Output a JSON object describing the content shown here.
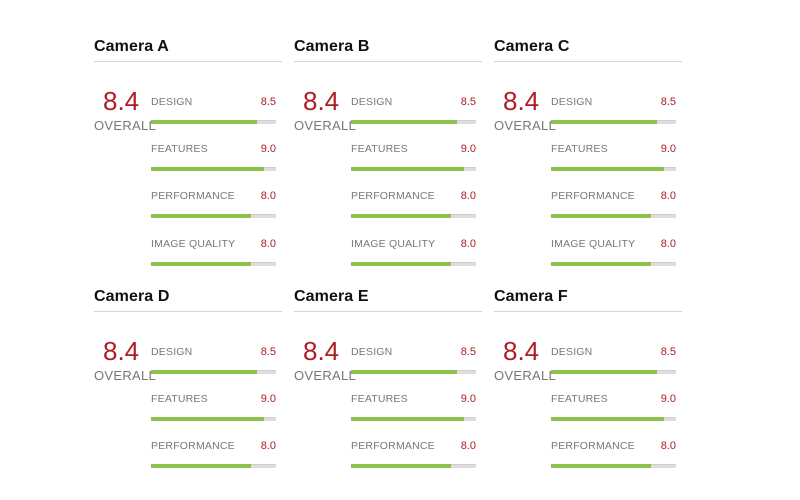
{
  "overall_label": "OVERALL",
  "colors": {
    "score": "#b01c24",
    "bar_fill": "#8bc34a",
    "bar_track": "#dedede"
  },
  "cameras": [
    {
      "name": "Camera A",
      "overall": "8.4",
      "metrics": [
        {
          "label": "DESIGN",
          "value": "8.5",
          "fraction": 0.85
        },
        {
          "label": "FEATURES",
          "value": "9.0",
          "fraction": 0.9
        },
        {
          "label": "PERFORMANCE",
          "value": "8.0",
          "fraction": 0.8
        },
        {
          "label": "IMAGE QUALITY",
          "value": "8.0",
          "fraction": 0.8
        }
      ]
    },
    {
      "name": "Camera B",
      "overall": "8.4",
      "metrics": [
        {
          "label": "DESIGN",
          "value": "8.5",
          "fraction": 0.85
        },
        {
          "label": "FEATURES",
          "value": "9.0",
          "fraction": 0.9
        },
        {
          "label": "PERFORMANCE",
          "value": "8.0",
          "fraction": 0.8
        },
        {
          "label": "IMAGE QUALITY",
          "value": "8.0",
          "fraction": 0.8
        }
      ]
    },
    {
      "name": "Camera C",
      "overall": "8.4",
      "metrics": [
        {
          "label": "DESIGN",
          "value": "8.5",
          "fraction": 0.85
        },
        {
          "label": "FEATURES",
          "value": "9.0",
          "fraction": 0.9
        },
        {
          "label": "PERFORMANCE",
          "value": "8.0",
          "fraction": 0.8
        },
        {
          "label": "IMAGE QUALITY",
          "value": "8.0",
          "fraction": 0.8
        }
      ]
    },
    {
      "name": "Camera D",
      "overall": "8.4",
      "metrics": [
        {
          "label": "DESIGN",
          "value": "8.5",
          "fraction": 0.85
        },
        {
          "label": "FEATURES",
          "value": "9.0",
          "fraction": 0.9
        },
        {
          "label": "PERFORMANCE",
          "value": "8.0",
          "fraction": 0.8
        }
      ]
    },
    {
      "name": "Camera E",
      "overall": "8.4",
      "metrics": [
        {
          "label": "DESIGN",
          "value": "8.5",
          "fraction": 0.85
        },
        {
          "label": "FEATURES",
          "value": "9.0",
          "fraction": 0.9
        },
        {
          "label": "PERFORMANCE",
          "value": "8.0",
          "fraction": 0.8
        }
      ]
    },
    {
      "name": "Camera F",
      "overall": "8.4",
      "metrics": [
        {
          "label": "DESIGN",
          "value": "8.5",
          "fraction": 0.85
        },
        {
          "label": "FEATURES",
          "value": "9.0",
          "fraction": 0.9
        },
        {
          "label": "PERFORMANCE",
          "value": "8.0",
          "fraction": 0.8
        }
      ]
    }
  ]
}
